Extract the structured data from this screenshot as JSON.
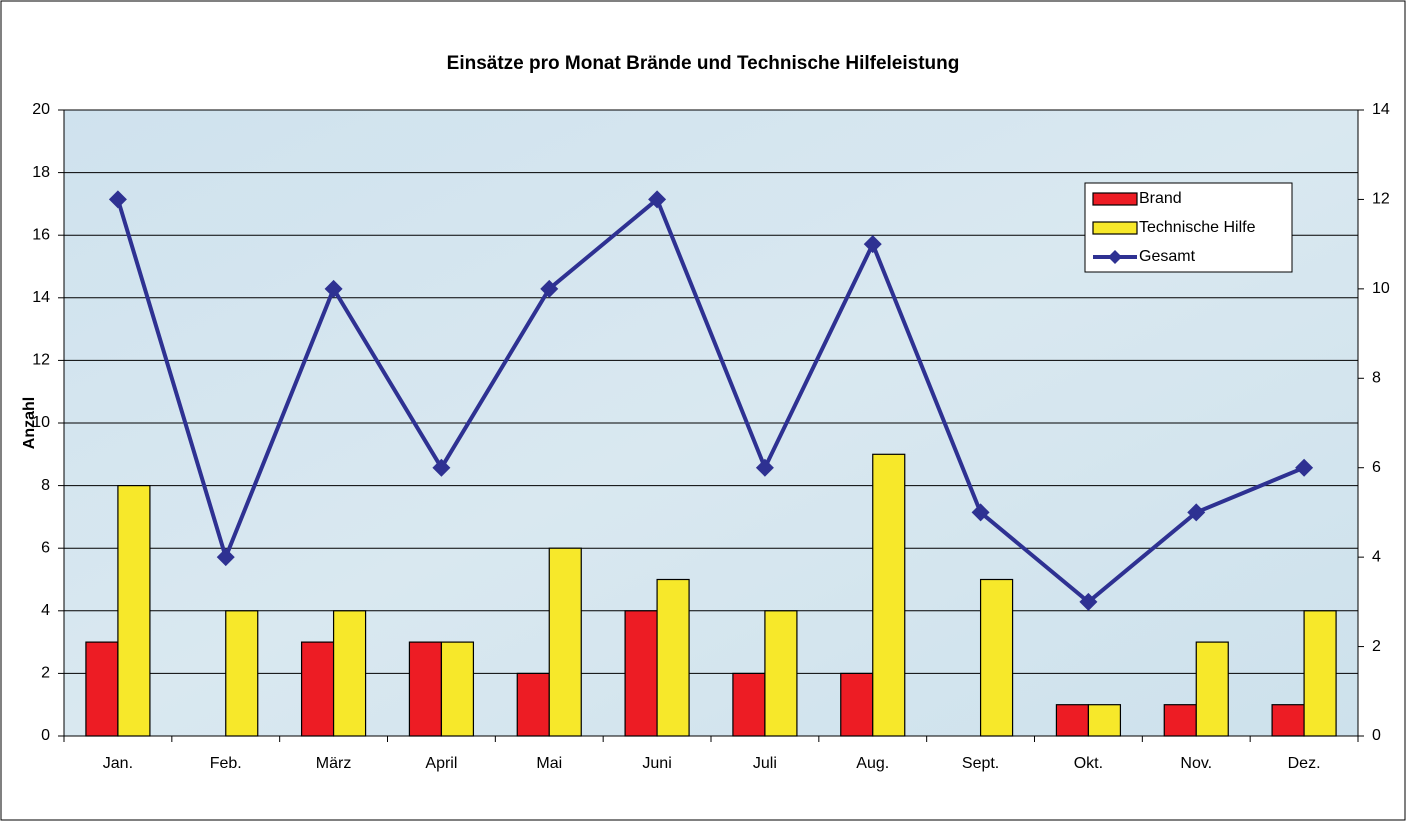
{
  "chart_data": {
    "type": "bar",
    "title": "Einsätze pro Monat Brände und Technische Hilfeleistung",
    "y_label": "Anzahl",
    "categories": [
      "Jan.",
      "Feb.",
      "März",
      "April",
      "Mai",
      "Juni",
      "Juli",
      "Aug.",
      "Sept.",
      "Okt.",
      "Nov.",
      "Dez."
    ],
    "series": [
      {
        "name": "Brand",
        "type": "bar",
        "color": "#ed1c24",
        "values": [
          3,
          0,
          3,
          3,
          2,
          4,
          2,
          2,
          0,
          1,
          1,
          1
        ]
      },
      {
        "name": "Technische Hilfe",
        "type": "bar",
        "color": "#f7e82a",
        "values": [
          8,
          4,
          4,
          3,
          6,
          5,
          4,
          9,
          5,
          1,
          3,
          4
        ]
      },
      {
        "name": "Gesamt",
        "type": "line",
        "axis": "y2",
        "color": "#2e3192",
        "values": [
          12,
          4,
          10,
          6,
          10,
          12,
          6,
          11,
          5,
          3,
          5,
          6
        ]
      }
    ],
    "ylim": [
      0,
      20
    ],
    "yticks": [
      0,
      2,
      4,
      6,
      8,
      10,
      12,
      14,
      16,
      18,
      20
    ],
    "y2lim": [
      0,
      14
    ],
    "y2ticks": [
      0,
      2,
      4,
      6,
      8,
      10,
      12,
      14
    ],
    "grid": true,
    "legend": "upper right"
  }
}
